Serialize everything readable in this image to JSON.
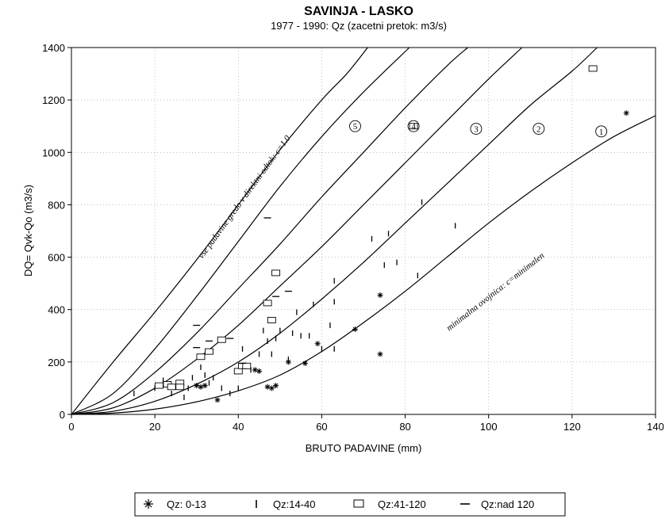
{
  "chart_data": {
    "type": "scatter",
    "title": "SAVINJA - LASKO",
    "subtitle": "1977 - 1990:  Qz (zacetni pretok: m3/s)",
    "xlabel": "BRUTO PADAVINE (mm)",
    "ylabel": "DQ= Qvk-Qo  (m3/s)",
    "xlim": [
      0,
      140
    ],
    "ylim": [
      0,
      1400
    ],
    "xticks": [
      "0",
      "20",
      "40",
      "60",
      "80",
      "100",
      "120",
      "140"
    ],
    "yticks": [
      "0",
      "200",
      "400",
      "600",
      "800",
      "1000",
      "1200",
      "1400"
    ],
    "grid": true,
    "legend_position": "bottom",
    "curves": [
      {
        "label": "5",
        "points": [
          [
            0,
            0
          ],
          [
            10,
            80
          ],
          [
            20,
            250
          ],
          [
            30,
            450
          ],
          [
            40,
            660
          ],
          [
            50,
            870
          ],
          [
            60,
            1060
          ],
          [
            70,
            1230
          ],
          [
            81,
            1400
          ]
        ]
      },
      {
        "label": "4",
        "points": [
          [
            0,
            0
          ],
          [
            10,
            45
          ],
          [
            20,
            160
          ],
          [
            30,
            310
          ],
          [
            40,
            480
          ],
          [
            50,
            650
          ],
          [
            60,
            830
          ],
          [
            70,
            1000
          ],
          [
            80,
            1170
          ],
          [
            90,
            1330
          ],
          [
            95,
            1400
          ]
        ]
      },
      {
        "label": "3",
        "points": [
          [
            0,
            0
          ],
          [
            10,
            25
          ],
          [
            20,
            100
          ],
          [
            30,
            210
          ],
          [
            40,
            340
          ],
          [
            50,
            490
          ],
          [
            60,
            640
          ],
          [
            70,
            800
          ],
          [
            80,
            960
          ],
          [
            90,
            1120
          ],
          [
            100,
            1280
          ],
          [
            108,
            1400
          ]
        ]
      },
      {
        "label": "2",
        "points": [
          [
            0,
            0
          ],
          [
            10,
            12
          ],
          [
            20,
            50
          ],
          [
            30,
            115
          ],
          [
            40,
            200
          ],
          [
            50,
            310
          ],
          [
            60,
            440
          ],
          [
            70,
            580
          ],
          [
            80,
            730
          ],
          [
            90,
            880
          ],
          [
            100,
            1030
          ],
          [
            110,
            1180
          ],
          [
            120,
            1310
          ],
          [
            126,
            1400
          ]
        ]
      },
      {
        "label": "1",
        "points": [
          [
            0,
            0
          ],
          [
            10,
            5
          ],
          [
            20,
            20
          ],
          [
            30,
            48
          ],
          [
            40,
            90
          ],
          [
            50,
            150
          ],
          [
            60,
            240
          ],
          [
            70,
            350
          ],
          [
            80,
            470
          ],
          [
            90,
            600
          ],
          [
            100,
            730
          ],
          [
            110,
            850
          ],
          [
            120,
            960
          ],
          [
            130,
            1060
          ],
          [
            140,
            1140
          ]
        ]
      },
      {
        "label": "",
        "points": [
          [
            0,
            0
          ],
          [
            10,
            200
          ],
          [
            20,
            390
          ],
          [
            30,
            590
          ],
          [
            40,
            800
          ],
          [
            50,
            1010
          ],
          [
            60,
            1200
          ],
          [
            66,
            1300
          ],
          [
            71,
            1400
          ]
        ]
      }
    ],
    "annotations": [
      {
        "text": "vse padavine gredo v direktni odtok:  c=1.0"
      },
      {
        "text": "minimalna ovojnica:  c=minimalen"
      }
    ],
    "series": [
      {
        "name": "Qz: 0-13",
        "marker": "asterisk",
        "points": [
          [
            30,
            110
          ],
          [
            31,
            105
          ],
          [
            32,
            110
          ],
          [
            35,
            55
          ],
          [
            44,
            170
          ],
          [
            45,
            165
          ],
          [
            47,
            105
          ],
          [
            48,
            100
          ],
          [
            49,
            110
          ],
          [
            52,
            200
          ],
          [
            56,
            195
          ],
          [
            59,
            270
          ],
          [
            68,
            325
          ],
          [
            74,
            230
          ],
          [
            74,
            455
          ],
          [
            133,
            1150
          ]
        ]
      },
      {
        "name": "Qz:14-40",
        "marker": "vbar",
        "points": [
          [
            15,
            80
          ],
          [
            20,
            100
          ],
          [
            22,
            130
          ],
          [
            24,
            80
          ],
          [
            26,
            120
          ],
          [
            27,
            65
          ],
          [
            28,
            100
          ],
          [
            29,
            140
          ],
          [
            31,
            180
          ],
          [
            32,
            150
          ],
          [
            33,
            120
          ],
          [
            34,
            140
          ],
          [
            36,
            100
          ],
          [
            38,
            80
          ],
          [
            40,
            100
          ],
          [
            41,
            250
          ],
          [
            43,
            170
          ],
          [
            45,
            230
          ],
          [
            46,
            320
          ],
          [
            47,
            280
          ],
          [
            48,
            230
          ],
          [
            49,
            290
          ],
          [
            50,
            320
          ],
          [
            52,
            210
          ],
          [
            53,
            310
          ],
          [
            54,
            390
          ],
          [
            55,
            300
          ],
          [
            57,
            300
          ],
          [
            58,
            420
          ],
          [
            60,
            250
          ],
          [
            62,
            340
          ],
          [
            63,
            510
          ],
          [
            63,
            430
          ],
          [
            63,
            250
          ],
          [
            72,
            670
          ],
          [
            75,
            570
          ],
          [
            76,
            690
          ],
          [
            78,
            580
          ],
          [
            83,
            530
          ],
          [
            84,
            810
          ],
          [
            92,
            720
          ]
        ]
      },
      {
        "name": "Qz:41-120",
        "marker": "square",
        "points": [
          [
            21,
            110
          ],
          [
            23,
            115
          ],
          [
            24,
            105
          ],
          [
            26,
            120
          ],
          [
            26,
            105
          ],
          [
            31,
            220
          ],
          [
            33,
            240
          ],
          [
            36,
            285
          ],
          [
            40,
            165
          ],
          [
            41,
            185
          ],
          [
            42,
            185
          ],
          [
            47,
            425
          ],
          [
            48,
            360
          ],
          [
            49,
            540
          ],
          [
            82,
            1100
          ],
          [
            125,
            1320
          ]
        ]
      },
      {
        "name": "Qz:nad 120",
        "marker": "hbar",
        "points": [
          [
            30,
            340
          ],
          [
            30,
            255
          ],
          [
            33,
            280
          ],
          [
            38,
            290
          ],
          [
            41,
            195
          ],
          [
            47,
            750
          ],
          [
            49,
            450
          ],
          [
            52,
            470
          ]
        ]
      }
    ]
  }
}
